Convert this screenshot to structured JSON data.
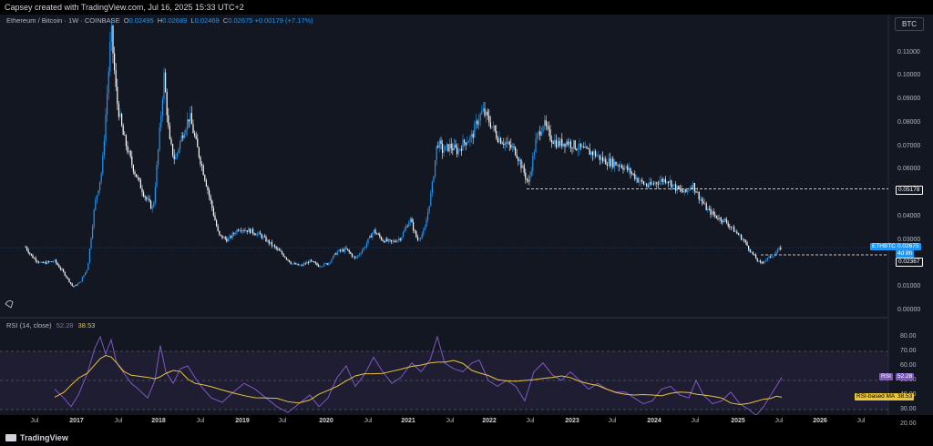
{
  "header": {
    "created_text": "Capsey created with TradingView.com, Jul 16, 2025 15:33 UTC+2"
  },
  "legend": {
    "symbol": "Ethereum / Bitcoin · 1W · COINBASE",
    "open_key": "O",
    "open": "0.02495",
    "high_key": "H",
    "high": "0.02689",
    "low_key": "L",
    "low": "0.02469",
    "close_key": "C",
    "close": "0.02675",
    "change": "+0.00179 (+7.17%)"
  },
  "currency_button": "BTC",
  "price_axis": [
    "0.11000",
    "0.10000",
    "0.09000",
    "0.08000",
    "0.07000",
    "0.06000",
    "0.05000",
    "0.04000",
    "0.03000",
    "0.02000",
    "0.01000",
    "0.00000"
  ],
  "price_tags": {
    "level_high": "0.05178",
    "symbol_tag": "ETHBTC",
    "last_price": "0.02675",
    "countdown": "4d 8h",
    "level_low": "0.02367"
  },
  "rsi": {
    "title": "RSI (14, close)",
    "value": "52.28",
    "ma_value": "38.53",
    "axis": [
      "80.00",
      "70.00",
      "60.00",
      "50.00",
      "40.00",
      "30.00",
      "20.00"
    ],
    "tag_rsi_label": "RSI",
    "tag_rsi_value": "52.28",
    "tag_ma_label": "RSI-based MA",
    "tag_ma_value": "38.53"
  },
  "time_axis": [
    {
      "label": "Jul",
      "year": false
    },
    {
      "label": "2017",
      "year": true
    },
    {
      "label": "Jul",
      "year": false
    },
    {
      "label": "2018",
      "year": true
    },
    {
      "label": "Jul",
      "year": false
    },
    {
      "label": "2019",
      "year": true
    },
    {
      "label": "Jul",
      "year": false
    },
    {
      "label": "2020",
      "year": true
    },
    {
      "label": "Jul",
      "year": false
    },
    {
      "label": "2021",
      "year": true
    },
    {
      "label": "Jul",
      "year": false
    },
    {
      "label": "2022",
      "year": true
    },
    {
      "label": "Jul",
      "year": false
    },
    {
      "label": "2023",
      "year": true
    },
    {
      "label": "Jul",
      "year": false
    },
    {
      "label": "2024",
      "year": true
    },
    {
      "label": "Jul",
      "year": false
    },
    {
      "label": "2025",
      "year": true
    },
    {
      "label": "Jul",
      "year": false
    },
    {
      "label": "2026",
      "year": true
    },
    {
      "label": "Jul",
      "year": false
    }
  ],
  "footer": {
    "brand": "TradingView"
  },
  "colors": {
    "background": "#131722",
    "bull": "#2196f3",
    "bear": "#ffffff",
    "rsi_line": "#7e57c2",
    "rsi_ma": "#e8c53a"
  }
}
